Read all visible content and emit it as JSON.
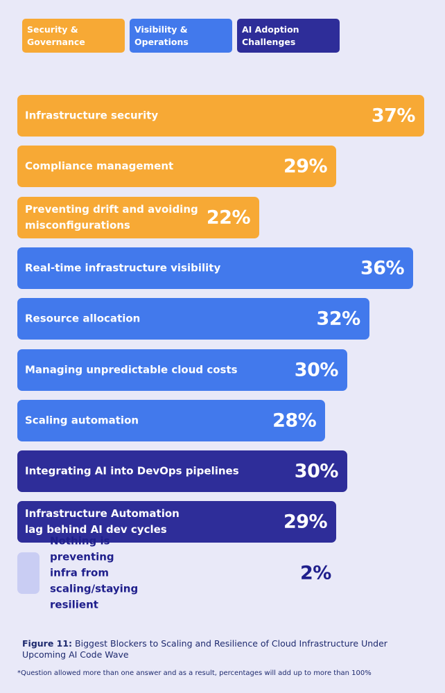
{
  "legend": [
    {
      "label": "Security &\nGovernance",
      "color": "#f7a935"
    },
    {
      "label": "Visibility &\nOperations",
      "color": "#4279ec"
    },
    {
      "label": "AI Adoption\nChallenges",
      "color": "#2e2d99"
    }
  ],
  "chart_data": {
    "type": "bar",
    "orientation": "horizontal",
    "categories": [
      "Infrastructure security",
      "Compliance management",
      "Preventing drift and avoiding\nmisconfigurations",
      "Real-time infrastructure visibility",
      "Resource allocation",
      "Managing unpredictable cloud costs",
      "Scaling automation",
      "Integrating AI into DevOps pipelines",
      "Infrastructure Automation\nlag behind AI dev cycles",
      "Nothing is preventing infra from\nscaling/staying resilient"
    ],
    "values": [
      37,
      29,
      22,
      36,
      32,
      30,
      28,
      30,
      29,
      2
    ],
    "value_labels": [
      "37%",
      "29%",
      "22%",
      "36%",
      "32%",
      "30%",
      "28%",
      "30%",
      "29%",
      "2%"
    ],
    "groups": [
      "Security & Governance",
      "Security & Governance",
      "Security & Governance",
      "Visibility & Operations",
      "Visibility & Operations",
      "Visibility & Operations",
      "Visibility & Operations",
      "AI Adoption Challenges",
      "AI Adoption Challenges",
      ""
    ],
    "colors": [
      "#f7a935",
      "#f7a935",
      "#f7a935",
      "#4279ec",
      "#4279ec",
      "#4279ec",
      "#4279ec",
      "#2e2d99",
      "#2e2d99",
      "#c9cdf3"
    ],
    "xlim": [
      0,
      37
    ],
    "grid": false,
    "legend_position": "top-left"
  },
  "caption": {
    "prefix": "Figure 11:",
    "text": " Biggest Blockers to Scaling and Resilience of Cloud Infrastructure Under Upcoming AI Code Wave"
  },
  "footnote": "*Question allowed more than one answer and as a result, percentages will add up to more than 100%"
}
